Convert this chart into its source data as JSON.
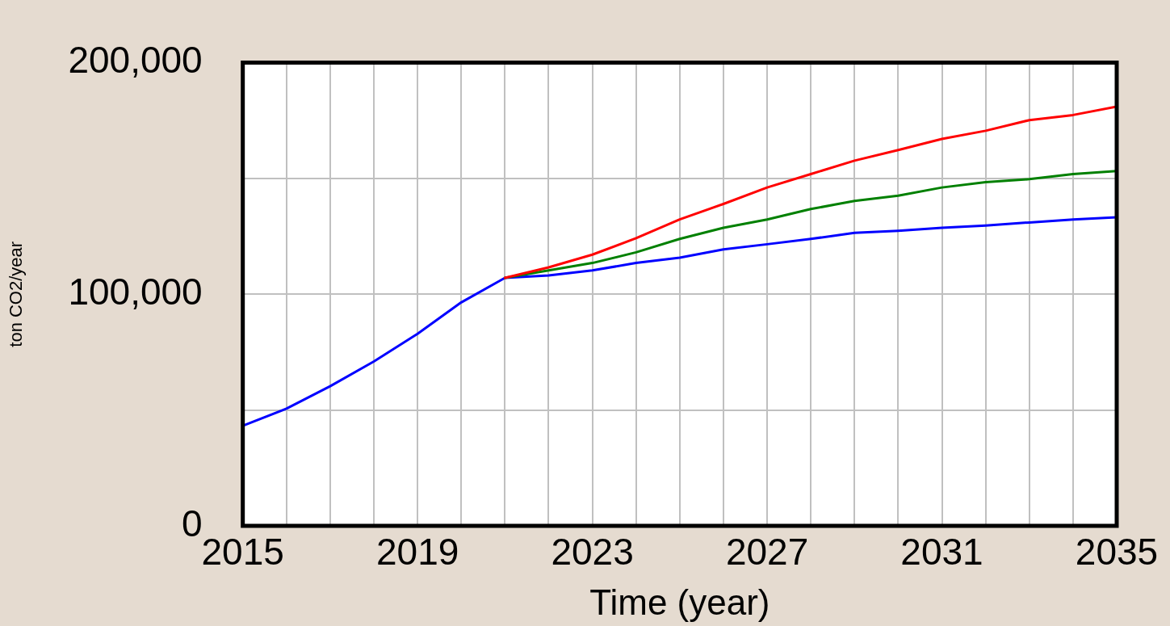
{
  "chart_data": {
    "type": "line",
    "xlabel": "Time (year)",
    "ylabel": "ton CO2/year",
    "x": [
      2015,
      2016,
      2017,
      2018,
      2019,
      2020,
      2021,
      2022,
      2023,
      2024,
      2025,
      2026,
      2027,
      2028,
      2029,
      2030,
      2031,
      2032,
      2033,
      2034,
      2035
    ],
    "series": [
      {
        "color": "#ff0000",
        "values": [
          null,
          null,
          null,
          null,
          null,
          null,
          107100,
          111600,
          117100,
          124200,
          132300,
          139000,
          146100,
          151900,
          157700,
          162300,
          167100,
          170600,
          175200,
          177400,
          181000
        ]
      },
      {
        "color": "#008000",
        "values": [
          null,
          null,
          null,
          null,
          null,
          null,
          107100,
          110300,
          113500,
          118100,
          123900,
          128700,
          132300,
          136800,
          140300,
          142600,
          146100,
          148400,
          149700,
          151900,
          153200
        ]
      },
      {
        "color": "#0000ff",
        "values": [
          43200,
          50600,
          60300,
          71000,
          82900,
          96500,
          107100,
          108100,
          110300,
          113500,
          115800,
          119400,
          121600,
          123900,
          126500,
          127400,
          128700,
          129700,
          131000,
          132300,
          133200
        ]
      }
    ],
    "xlim": [
      2015,
      2035
    ],
    "xticks": [
      2015,
      {
        "value": 2016,
        "label": null
      },
      {
        "value": 2017,
        "label": null
      },
      {
        "value": 2018,
        "label": null
      },
      2019,
      {
        "value": 2020,
        "label": null
      },
      {
        "value": 2021,
        "label": null
      },
      {
        "value": 2022,
        "label": null
      },
      2023,
      {
        "value": 2024,
        "label": null
      },
      {
        "value": 2025,
        "label": null
      },
      {
        "value": 2026,
        "label": null
      },
      2027,
      {
        "value": 2028,
        "label": null
      },
      {
        "value": 2029,
        "label": null
      },
      {
        "value": 2030,
        "label": null
      },
      2031,
      {
        "value": 2032,
        "label": null
      },
      {
        "value": 2033,
        "label": null
      },
      {
        "value": 2034,
        "label": null
      },
      2035
    ],
    "ylim": [
      0,
      200000
    ],
    "yticks": [
      0,
      {
        "value": 50000,
        "label": null
      },
      {
        "value": 100000,
        "label": "100,000"
      },
      {
        "value": 150000,
        "label": null
      },
      {
        "value": 200000,
        "label": "200,000"
      }
    ],
    "grid": true,
    "marker": "none"
  }
}
